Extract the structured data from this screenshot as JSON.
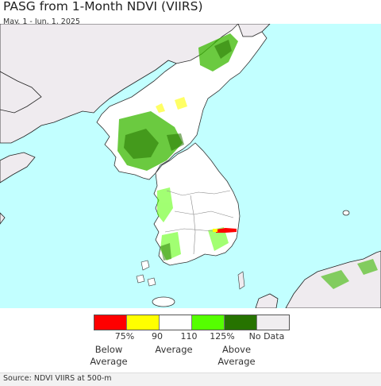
{
  "title": "PASG from 1-Month NDVI (VIIRS)",
  "subtitle": "May. 1 - Jun. 1, 2025",
  "legend": {
    "swatches": [
      {
        "color": "#ff0000",
        "name": "below-75"
      },
      {
        "color": "#ffff00",
        "name": "75-90"
      },
      {
        "color": "#ffffff",
        "name": "90-110"
      },
      {
        "color": "#55ff00",
        "name": "110-125"
      },
      {
        "color": "#267300",
        "name": "above-125"
      },
      {
        "color": "#f0eef0",
        "name": "no-data"
      }
    ],
    "ticks": [
      "75%",
      "90",
      "110",
      "125%"
    ],
    "no_data_label": "No Data",
    "below_label": "Below\nAverage",
    "average_label": "Average",
    "above_label": "Above\nAverage"
  },
  "map": {
    "sea_color": "#c2ffff",
    "land_nodata_color": "#efebef",
    "land_normal_color": "#ffffff"
  },
  "source": "Source: NDVI VIIRS at 500-m"
}
